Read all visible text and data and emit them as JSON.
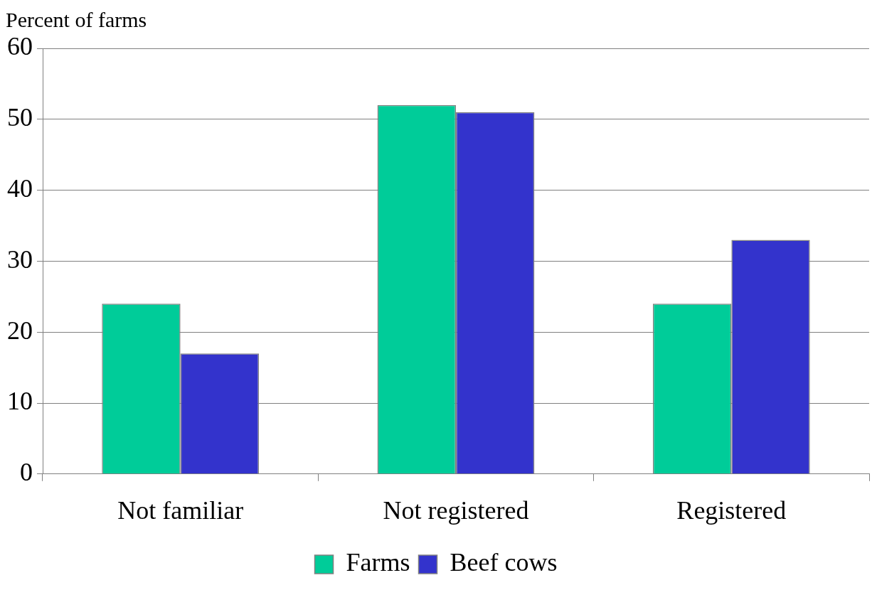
{
  "chart_data": {
    "type": "bar",
    "ylabel": "Percent of farms",
    "categories": [
      "Not familiar",
      "Not registered",
      "Registered"
    ],
    "series": [
      {
        "name": "Farms",
        "color": "#00cc99",
        "values": [
          24,
          52,
          24
        ]
      },
      {
        "name": "Beef cows",
        "color": "#3333cc",
        "values": [
          17,
          51,
          33
        ]
      }
    ],
    "ylim": [
      0,
      60
    ],
    "yticks": [
      0,
      10,
      20,
      30,
      40,
      50,
      60
    ],
    "grid": "y",
    "legend": "bottom"
  }
}
